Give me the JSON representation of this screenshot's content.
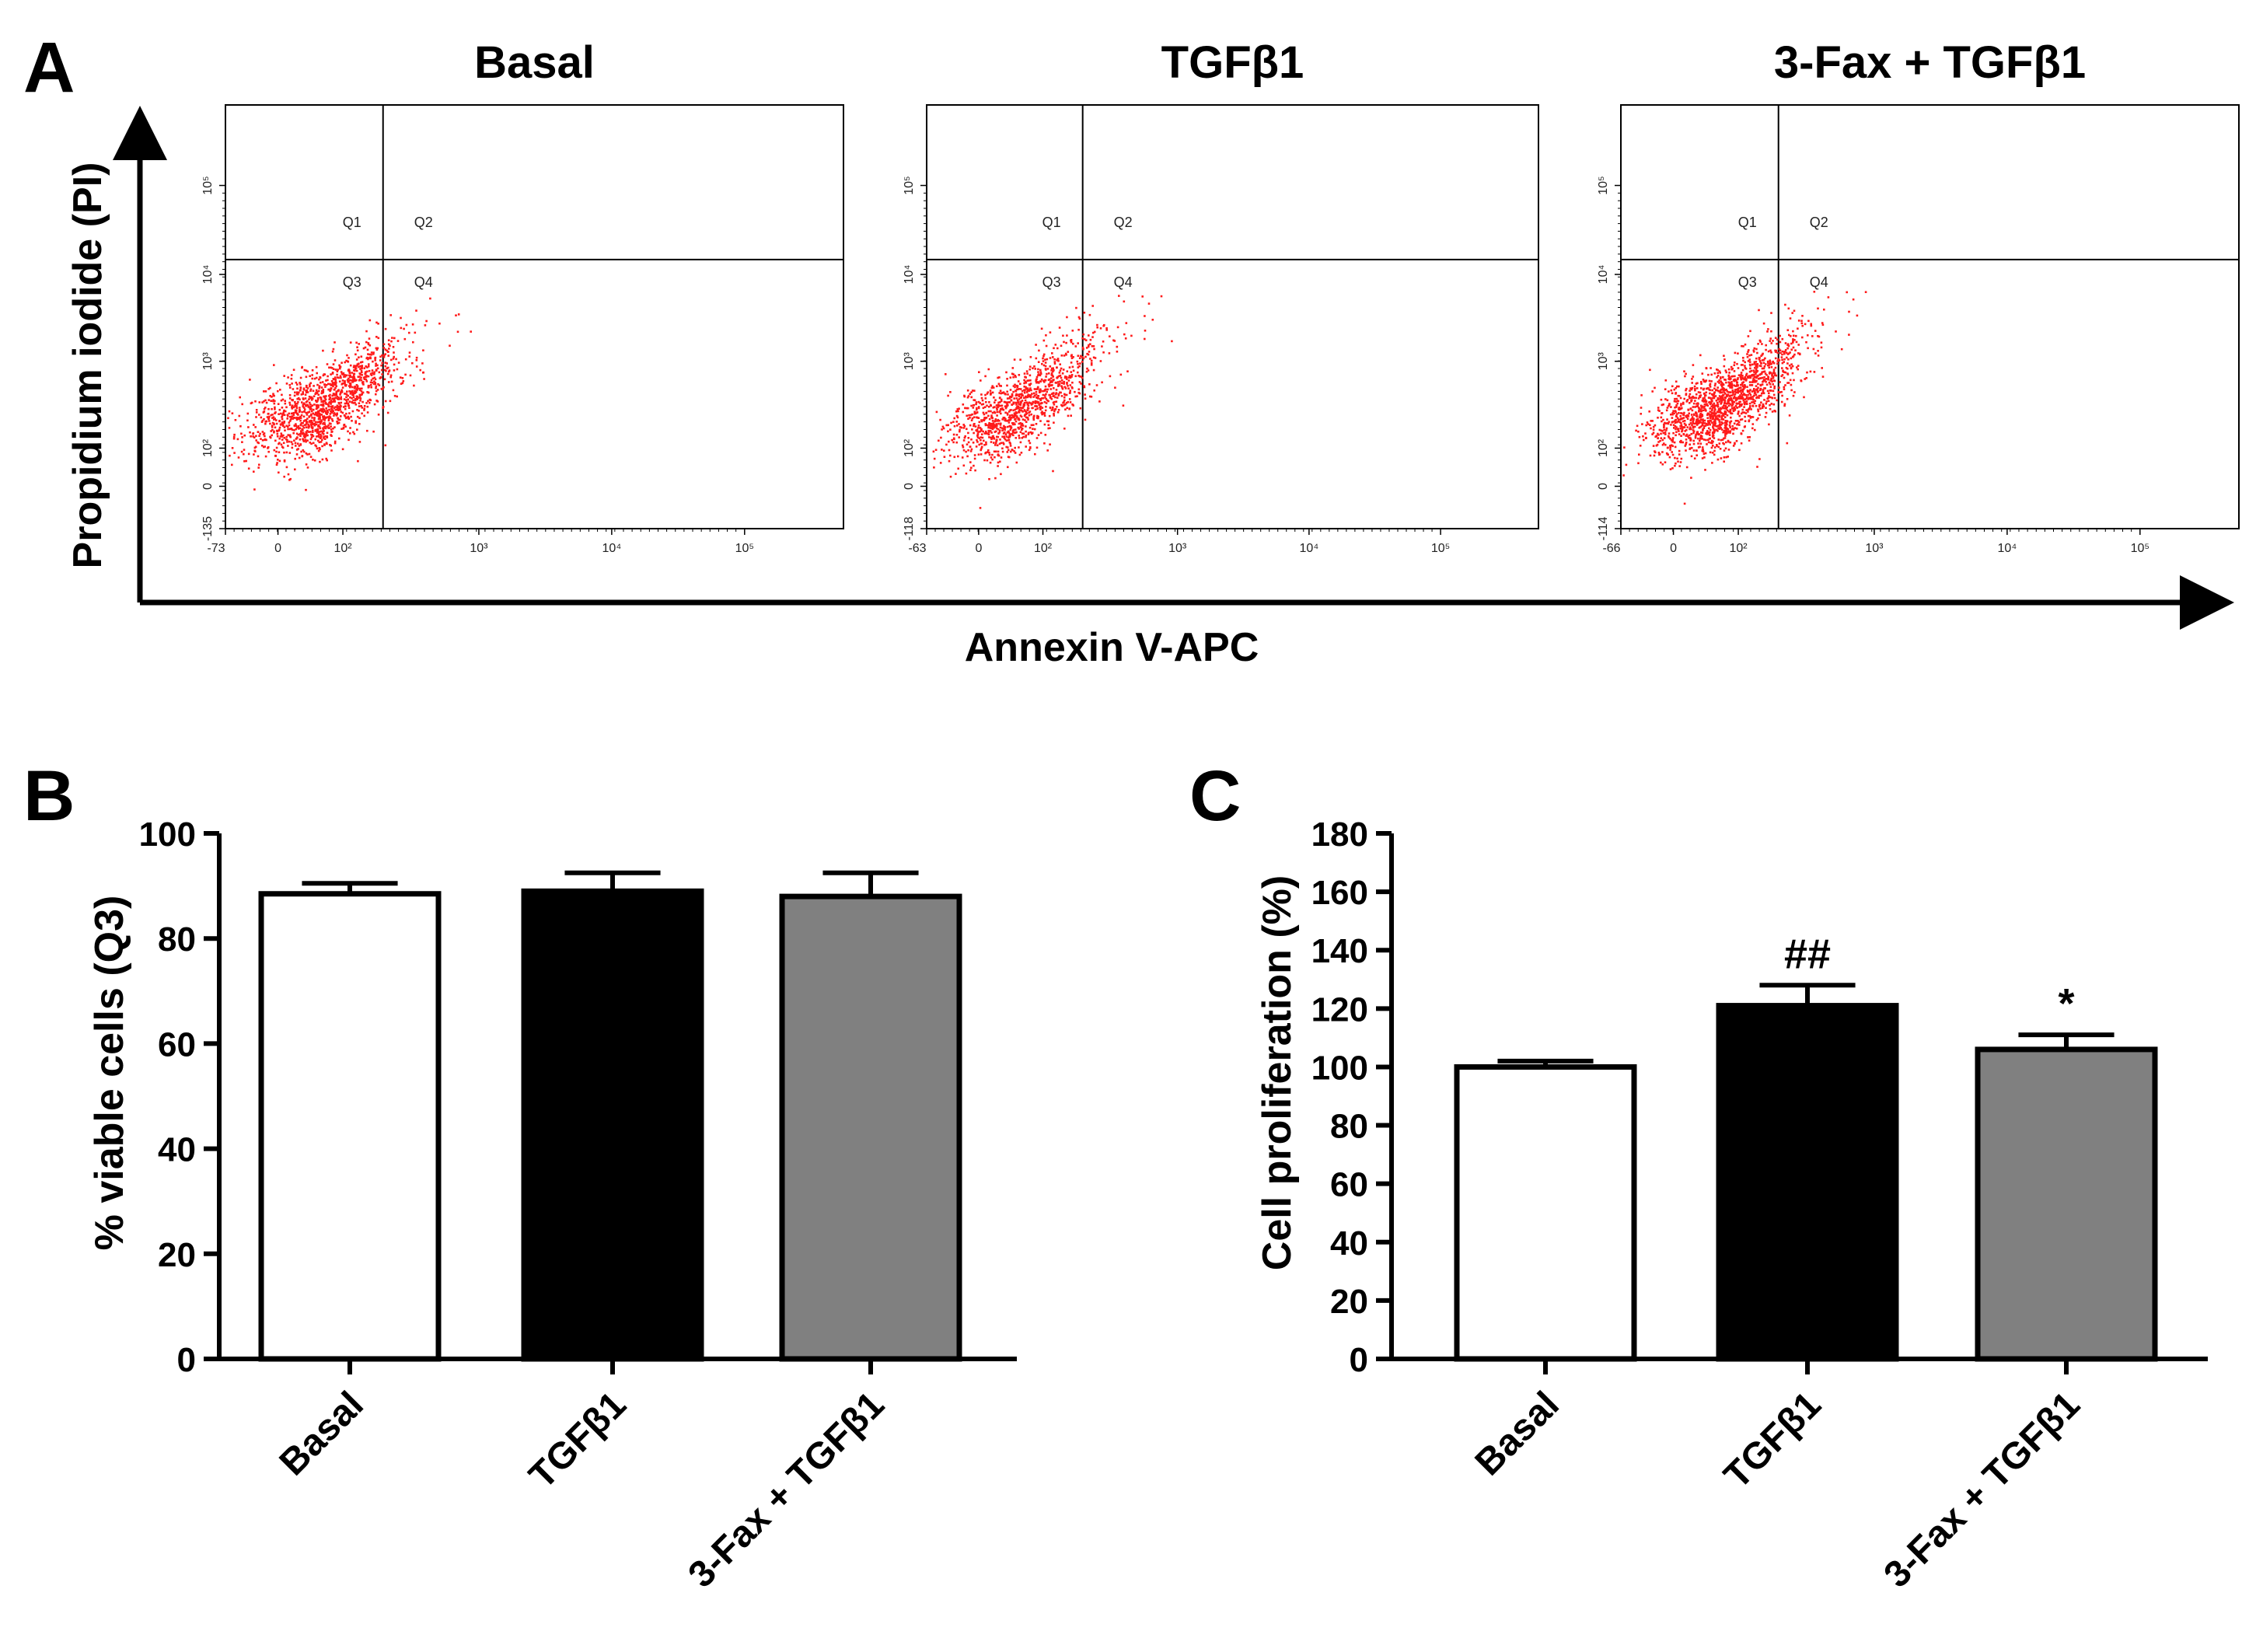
{
  "panels": {
    "a": "A",
    "b": "B",
    "c": "C"
  },
  "colors": {
    "dots": "#ff1a1a",
    "bar_basal": "#ffffff",
    "bar_tgf": "#000000",
    "bar_fax": "#808080"
  },
  "chart_data": [
    {
      "id": "A",
      "type": "scatter",
      "xlabel": "Annexin V-APC",
      "ylabel": "Propidium iodide (PI)",
      "quadrants": [
        "Q1",
        "Q2",
        "Q3",
        "Q4"
      ],
      "plots": [
        {
          "title": "Basal",
          "x_ticks": [
            "-73",
            "0",
            "10²",
            "10³",
            "10⁴",
            "10⁵"
          ],
          "y_ticks": [
            "-135",
            "0",
            "10²",
            "10³",
            "10⁴",
            "10⁵"
          ],
          "cluster": {
            "x_center": 60,
            "y_center": 30,
            "n": 1400
          }
        },
        {
          "title": "TGFβ1",
          "x_ticks": [
            "-63",
            "0",
            "10²",
            "10³",
            "10⁴",
            "10⁵"
          ],
          "y_ticks": [
            "-118",
            "0",
            "10²",
            "10³",
            "10⁴",
            "10⁵"
          ],
          "cluster": {
            "x_center": 55,
            "y_center": 25,
            "n": 1200
          }
        },
        {
          "title": "3-Fax + TGFβ1",
          "x_ticks": [
            "-66",
            "0",
            "10²",
            "10³",
            "10⁴",
            "10⁵"
          ],
          "y_ticks": [
            "-114",
            "0",
            "10²",
            "10³",
            "10⁴",
            "10⁵"
          ],
          "cluster": {
            "x_center": 70,
            "y_center": 35,
            "n": 1600
          }
        }
      ]
    },
    {
      "id": "B",
      "type": "bar",
      "categories": [
        "Basal",
        "TGFβ1",
        "3-Fax + TGFβ1"
      ],
      "values": [
        88.5,
        89,
        88
      ],
      "errors": [
        2,
        3.5,
        4.5
      ],
      "ylabel": "% viable cells (Q3)",
      "ylim": [
        0,
        100
      ],
      "yticks": [
        0,
        20,
        40,
        60,
        80,
        100
      ],
      "annotations": [
        "",
        "",
        ""
      ]
    },
    {
      "id": "C",
      "type": "bar",
      "categories": [
        "Basal",
        "TGFβ1",
        "3-Fax + TGFβ1"
      ],
      "values": [
        100,
        121,
        106
      ],
      "errors": [
        2,
        7,
        5
      ],
      "ylabel": "Cell proliferation (%)",
      "ylim": [
        0,
        180
      ],
      "yticks": [
        0,
        20,
        40,
        60,
        80,
        100,
        120,
        140,
        160,
        180
      ],
      "annotations": [
        "",
        "##",
        "*"
      ]
    }
  ]
}
